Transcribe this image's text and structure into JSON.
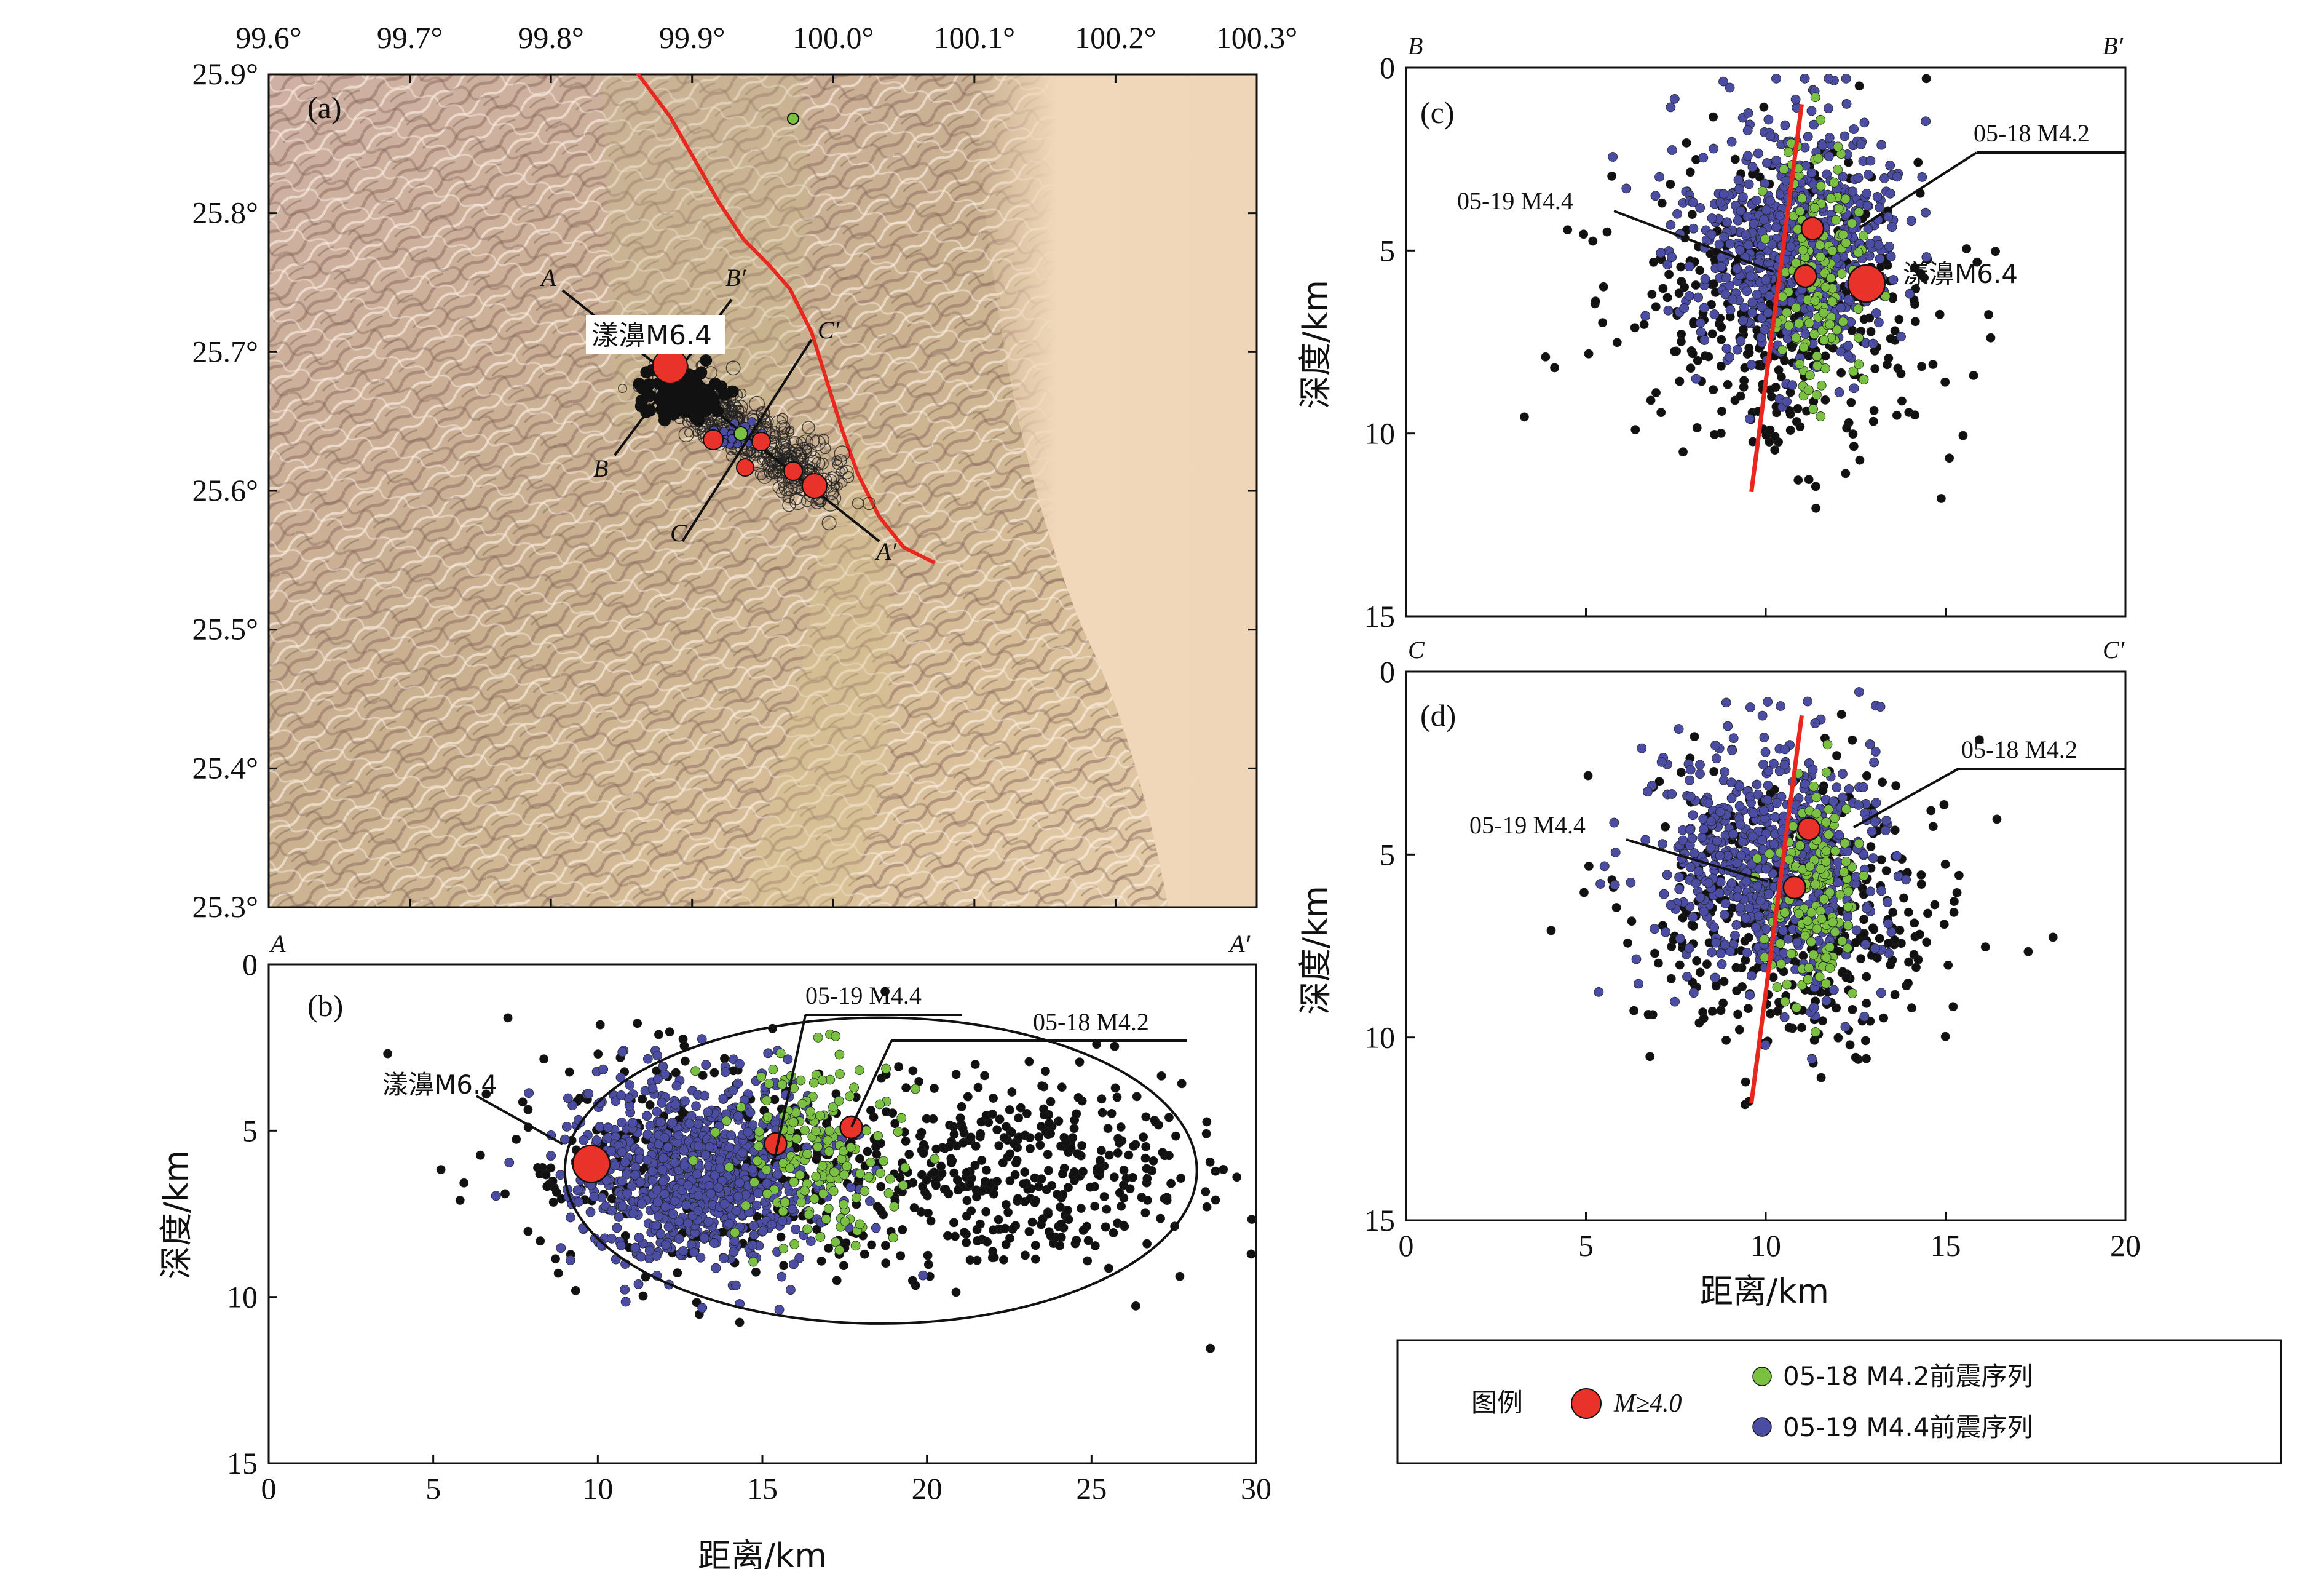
{
  "panel_a": {
    "label": "(a)",
    "lon_ticks": [
      "99.6°",
      "99.7°",
      "99.8°",
      "99.9°",
      "100.0°",
      "100.1°",
      "100.2°",
      "100.3°"
    ],
    "lat_ticks": [
      "25.9°",
      "25.8°",
      "25.7°",
      "25.6°",
      "25.5°",
      "25.4°",
      "25.3°"
    ],
    "mainshock_label": "漾濞M6.4",
    "profile_labels": [
      "A",
      "A′",
      "B",
      "B′",
      "C",
      "C′"
    ],
    "fault_color": "#e8281f"
  },
  "panel_b": {
    "label": "(b)",
    "end_left": "A",
    "end_right": "A′",
    "xlabel": "距离/km",
    "ylabel": "深度/km",
    "xticks": [
      "0",
      "5",
      "10",
      "15",
      "20",
      "25",
      "30"
    ],
    "yticks": [
      "0",
      "5",
      "10",
      "15"
    ],
    "annotations": [
      "漾濞M6.4",
      "05-19 M4.4",
      "05-18 M4.2"
    ]
  },
  "panel_c": {
    "label": "(c)",
    "end_left": "B",
    "end_right": "B′",
    "ylabel": "深度/km",
    "yticks": [
      "0",
      "5",
      "10",
      "15"
    ],
    "annotations": [
      "05-18 M4.2",
      "05-19 M4.4",
      "漾濞M6.4"
    ]
  },
  "panel_d": {
    "label": "(d)",
    "end_left": "C",
    "end_right": "C′",
    "xlabel": "距离/km",
    "ylabel": "深度/km",
    "xticks": [
      "0",
      "5",
      "10",
      "15",
      "20"
    ],
    "yticks": [
      "0",
      "5",
      "10",
      "15"
    ],
    "annotations": [
      "05-18 M4.2",
      "05-19 M4.4"
    ]
  },
  "legend": {
    "title": "图例",
    "large_event": "M≥4.0",
    "green_series": "05-18 M4.2前震序列",
    "blue_series": "05-19 M4.4前震序列"
  },
  "colors": {
    "red_event": "#e8322a",
    "green": "#7ac142",
    "blue": "#4b4da3",
    "black": "#111111",
    "fault": "#e8281f"
  },
  "chart_data": [
    {
      "type": "scatter",
      "panel": "(b) A–A′ profile",
      "xlabel": "距离/km",
      "ylabel": "深度/km",
      "xlim": [
        0,
        30
      ],
      "ylim": [
        15,
        0
      ],
      "large_events": [
        {
          "label": "漾濞M6.4",
          "x": 9.8,
          "y": 6.0,
          "magnitude": 6.4
        },
        {
          "label": "05-19 M4.4",
          "x": 15.4,
          "y": 5.4,
          "magnitude": 4.4
        },
        {
          "label": "05-18 M4.2",
          "x": 17.7,
          "y": 4.9,
          "magnitude": 4.2
        }
      ],
      "clusters": [
        {
          "series": "blue",
          "cx": 13.0,
          "cy": 6.3,
          "sx": 1.9,
          "sy": 1.4,
          "count": 900
        },
        {
          "series": "green",
          "cx": 16.6,
          "cy": 5.6,
          "sx": 1.2,
          "sy": 1.4,
          "count": 180
        },
        {
          "series": "black",
          "cx": 22.0,
          "cy": 6.4,
          "sx": 4.0,
          "sy": 1.5,
          "count": 480
        },
        {
          "series": "black",
          "cx": 12.5,
          "cy": 6.0,
          "sx": 3.0,
          "sy": 1.8,
          "count": 220
        }
      ],
      "ellipse": {
        "cx": 18.6,
        "cy": 6.2,
        "rx": 9.6,
        "ry": 4.6
      }
    },
    {
      "type": "scatter",
      "panel": "(c) B–B′ profile",
      "ylabel": "深度/km",
      "xlim": [
        0,
        20
      ],
      "ylim": [
        15,
        0
      ],
      "large_events": [
        {
          "label": "05-18 M4.2",
          "x": 11.3,
          "y": 4.4,
          "magnitude": 4.2
        },
        {
          "label": "05-19 M4.4",
          "x": 11.1,
          "y": 5.7,
          "magnitude": 4.4
        },
        {
          "label": "漾濞M6.4",
          "x": 12.8,
          "y": 5.9,
          "magnitude": 6.4
        }
      ],
      "fault_line": [
        [
          9.6,
          11.6
        ],
        [
          11.0,
          1.0
        ]
      ],
      "clusters": [
        {
          "series": "blue",
          "cx": 10.8,
          "cy": 4.8,
          "sx": 1.4,
          "sy": 1.6,
          "count": 650
        },
        {
          "series": "green",
          "cx": 11.5,
          "cy": 5.6,
          "sx": 0.6,
          "sy": 1.8,
          "count": 150
        },
        {
          "series": "black",
          "cx": 10.5,
          "cy": 6.4,
          "sx": 2.4,
          "sy": 1.9,
          "count": 420
        }
      ]
    },
    {
      "type": "scatter",
      "panel": "(d) C–C′ profile",
      "xlabel": "距离/km",
      "ylabel": "深度/km",
      "xlim": [
        0,
        20
      ],
      "ylim": [
        15,
        0
      ],
      "large_events": [
        {
          "label": "05-18 M4.2",
          "x": 11.2,
          "y": 4.3,
          "magnitude": 4.2
        },
        {
          "label": "05-19 M4.4",
          "x": 10.8,
          "y": 5.9,
          "magnitude": 4.4
        }
      ],
      "fault_line": [
        [
          9.6,
          11.8
        ],
        [
          11.0,
          1.2
        ]
      ],
      "clusters": [
        {
          "series": "blue",
          "cx": 10.2,
          "cy": 5.3,
          "sx": 1.5,
          "sy": 1.6,
          "count": 650
        },
        {
          "series": "green",
          "cx": 11.4,
          "cy": 6.0,
          "sx": 0.6,
          "sy": 1.7,
          "count": 150
        },
        {
          "series": "black",
          "cx": 10.8,
          "cy": 6.6,
          "sx": 2.2,
          "sy": 1.9,
          "count": 420
        }
      ]
    }
  ]
}
